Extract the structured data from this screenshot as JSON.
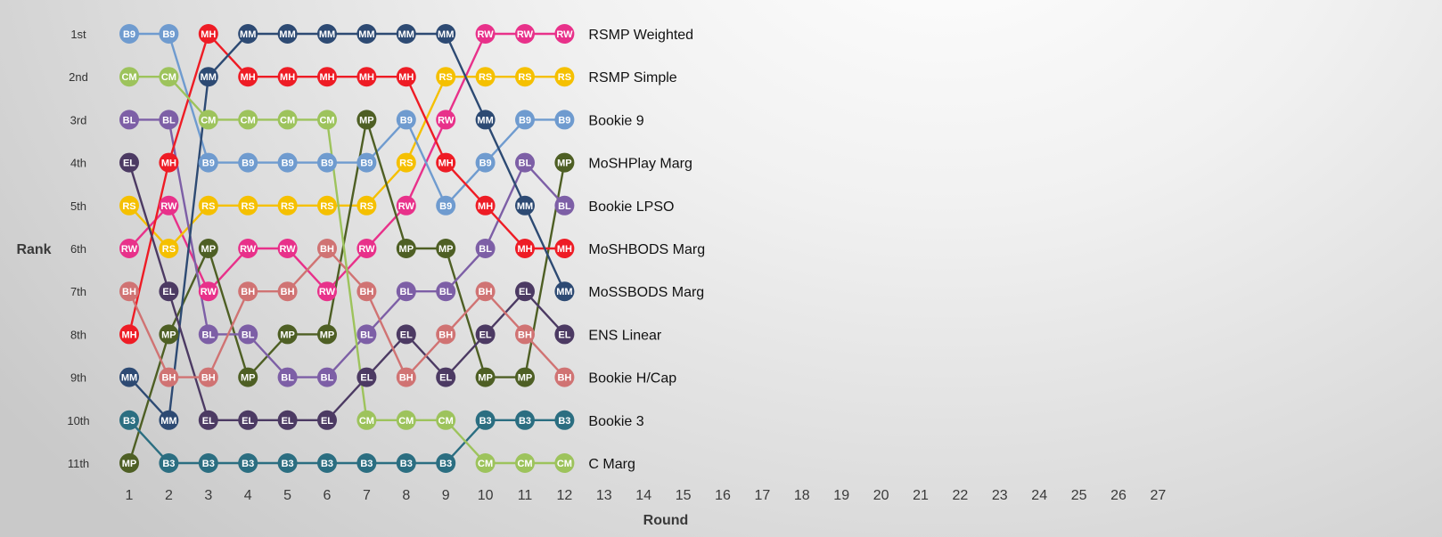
{
  "chart_data": {
    "type": "line",
    "title": "",
    "xlabel": "Round",
    "ylabel": "Rank",
    "x_ticks": [
      "1",
      "2",
      "3",
      "4",
      "5",
      "6",
      "7",
      "8",
      "9",
      "10",
      "11",
      "12",
      "13",
      "14",
      "15",
      "16",
      "17",
      "18",
      "19",
      "20",
      "21",
      "22",
      "23",
      "24",
      "25",
      "26",
      "27"
    ],
    "y_ticks": [
      "1st",
      "2nd",
      "3rd",
      "4th",
      "5th",
      "6th",
      "7th",
      "8th",
      "9th",
      "10th",
      "11th"
    ],
    "xlim": [
      1,
      27
    ],
    "ylim": [
      1,
      11
    ],
    "grid": false,
    "legend": "end-of-line labels at right",
    "series": [
      {
        "name": "RSMP Weighted",
        "abbr": "RW",
        "color": "#e8318a",
        "ranks": [
          6,
          5,
          7,
          6,
          6,
          7,
          6,
          5,
          3,
          1,
          1,
          1
        ]
      },
      {
        "name": "RSMP Simple",
        "abbr": "RS",
        "color": "#f5c000",
        "ranks": [
          5,
          6,
          5,
          5,
          5,
          5,
          5,
          4,
          2,
          2,
          2,
          2
        ]
      },
      {
        "name": "Bookie 9",
        "abbr": "B9",
        "color": "#6f9bcf",
        "ranks": [
          1,
          1,
          4,
          4,
          4,
          4,
          4,
          3,
          5,
          4,
          3,
          3
        ]
      },
      {
        "name": "MoSHPlay Marg",
        "abbr": "MP",
        "color": "#4e5f24",
        "ranks": [
          11,
          8,
          6,
          9,
          8,
          8,
          3,
          6,
          6,
          9,
          9,
          4
        ]
      },
      {
        "name": "Bookie LPSO",
        "abbr": "BL",
        "color": "#7d5fa6",
        "ranks": [
          3,
          3,
          8,
          8,
          9,
          9,
          8,
          7,
          7,
          6,
          4,
          5
        ]
      },
      {
        "name": "MoSHBODS Marg",
        "abbr": "MH",
        "color": "#ee1c25",
        "ranks": [
          8,
          4,
          1,
          2,
          2,
          2,
          2,
          2,
          4,
          5,
          6,
          6
        ]
      },
      {
        "name": "MoSSBODS Marg",
        "abbr": "MM",
        "color": "#2d4a73",
        "ranks": [
          9,
          10,
          2,
          1,
          1,
          1,
          1,
          1,
          1,
          3,
          5,
          7
        ]
      },
      {
        "name": "ENS Linear",
        "abbr": "EL",
        "color": "#4c3a63",
        "ranks": [
          4,
          7,
          10,
          10,
          10,
          10,
          9,
          8,
          9,
          8,
          7,
          8
        ]
      },
      {
        "name": "Bookie H/Cap",
        "abbr": "BH",
        "color": "#d07373",
        "ranks": [
          7,
          9,
          9,
          7,
          7,
          6,
          7,
          9,
          8,
          7,
          8,
          9
        ]
      },
      {
        "name": "Bookie 3",
        "abbr": "B3",
        "color": "#2b6e81",
        "ranks": [
          10,
          11,
          11,
          11,
          11,
          11,
          11,
          11,
          11,
          10,
          10,
          10
        ]
      },
      {
        "name": "C Marg",
        "abbr": "CM",
        "color": "#9dc35c",
        "ranks": [
          2,
          2,
          3,
          3,
          3,
          3,
          10,
          10,
          10,
          11,
          11,
          11
        ]
      }
    ]
  }
}
